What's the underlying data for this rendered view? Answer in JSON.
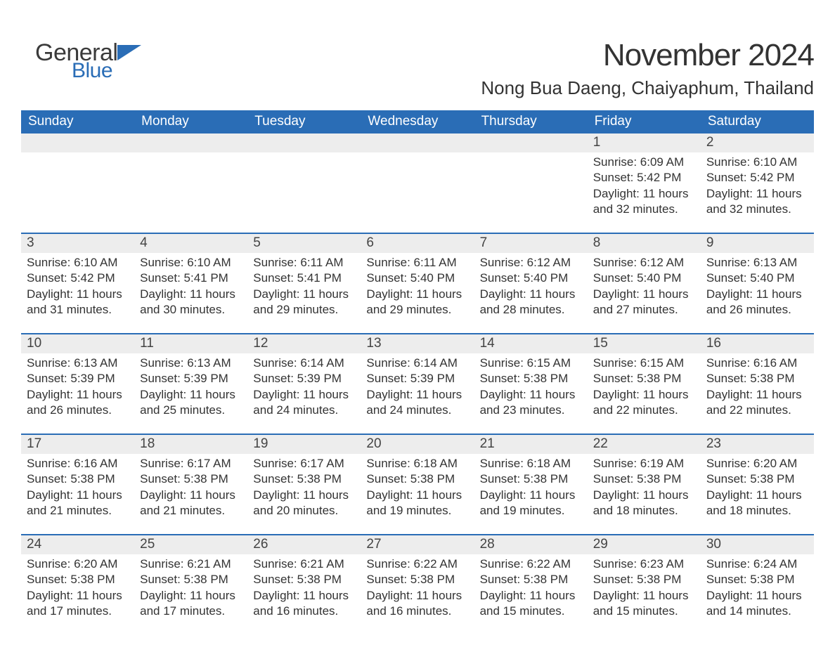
{
  "logo": {
    "general": "General",
    "blue": "Blue",
    "brand_color": "#2a6db6",
    "text_color": "#3a3a3a"
  },
  "title": "November 2024",
  "location": "Nong Bua Daeng, Chaiyaphum, Thailand",
  "colors": {
    "header_bg": "#2a6db6",
    "header_text": "#ffffff",
    "daynum_bg": "#ededed",
    "row_separator": "#2a6db6",
    "body_text": "#333333",
    "page_bg": "#ffffff"
  },
  "typography": {
    "title_fontsize": 44,
    "location_fontsize": 26,
    "header_fontsize": 19,
    "daynum_fontsize": 19,
    "body_fontsize": 17
  },
  "layout": {
    "columns": 7,
    "rows": 5,
    "start_day_index": 5
  },
  "weekday_headers": [
    "Sunday",
    "Monday",
    "Tuesday",
    "Wednesday",
    "Thursday",
    "Friday",
    "Saturday"
  ],
  "labels": {
    "sunrise": "Sunrise:",
    "sunset": "Sunset:",
    "daylight": "Daylight:"
  },
  "days": [
    {
      "n": 1,
      "sunrise": "6:09 AM",
      "sunset": "5:42 PM",
      "daylight": "11 hours and 32 minutes."
    },
    {
      "n": 2,
      "sunrise": "6:10 AM",
      "sunset": "5:42 PM",
      "daylight": "11 hours and 32 minutes."
    },
    {
      "n": 3,
      "sunrise": "6:10 AM",
      "sunset": "5:42 PM",
      "daylight": "11 hours and 31 minutes."
    },
    {
      "n": 4,
      "sunrise": "6:10 AM",
      "sunset": "5:41 PM",
      "daylight": "11 hours and 30 minutes."
    },
    {
      "n": 5,
      "sunrise": "6:11 AM",
      "sunset": "5:41 PM",
      "daylight": "11 hours and 29 minutes."
    },
    {
      "n": 6,
      "sunrise": "6:11 AM",
      "sunset": "5:40 PM",
      "daylight": "11 hours and 29 minutes."
    },
    {
      "n": 7,
      "sunrise": "6:12 AM",
      "sunset": "5:40 PM",
      "daylight": "11 hours and 28 minutes."
    },
    {
      "n": 8,
      "sunrise": "6:12 AM",
      "sunset": "5:40 PM",
      "daylight": "11 hours and 27 minutes."
    },
    {
      "n": 9,
      "sunrise": "6:13 AM",
      "sunset": "5:40 PM",
      "daylight": "11 hours and 26 minutes."
    },
    {
      "n": 10,
      "sunrise": "6:13 AM",
      "sunset": "5:39 PM",
      "daylight": "11 hours and 26 minutes."
    },
    {
      "n": 11,
      "sunrise": "6:13 AM",
      "sunset": "5:39 PM",
      "daylight": "11 hours and 25 minutes."
    },
    {
      "n": 12,
      "sunrise": "6:14 AM",
      "sunset": "5:39 PM",
      "daylight": "11 hours and 24 minutes."
    },
    {
      "n": 13,
      "sunrise": "6:14 AM",
      "sunset": "5:39 PM",
      "daylight": "11 hours and 24 minutes."
    },
    {
      "n": 14,
      "sunrise": "6:15 AM",
      "sunset": "5:38 PM",
      "daylight": "11 hours and 23 minutes."
    },
    {
      "n": 15,
      "sunrise": "6:15 AM",
      "sunset": "5:38 PM",
      "daylight": "11 hours and 22 minutes."
    },
    {
      "n": 16,
      "sunrise": "6:16 AM",
      "sunset": "5:38 PM",
      "daylight": "11 hours and 22 minutes."
    },
    {
      "n": 17,
      "sunrise": "6:16 AM",
      "sunset": "5:38 PM",
      "daylight": "11 hours and 21 minutes."
    },
    {
      "n": 18,
      "sunrise": "6:17 AM",
      "sunset": "5:38 PM",
      "daylight": "11 hours and 21 minutes."
    },
    {
      "n": 19,
      "sunrise": "6:17 AM",
      "sunset": "5:38 PM",
      "daylight": "11 hours and 20 minutes."
    },
    {
      "n": 20,
      "sunrise": "6:18 AM",
      "sunset": "5:38 PM",
      "daylight": "11 hours and 19 minutes."
    },
    {
      "n": 21,
      "sunrise": "6:18 AM",
      "sunset": "5:38 PM",
      "daylight": "11 hours and 19 minutes."
    },
    {
      "n": 22,
      "sunrise": "6:19 AM",
      "sunset": "5:38 PM",
      "daylight": "11 hours and 18 minutes."
    },
    {
      "n": 23,
      "sunrise": "6:20 AM",
      "sunset": "5:38 PM",
      "daylight": "11 hours and 18 minutes."
    },
    {
      "n": 24,
      "sunrise": "6:20 AM",
      "sunset": "5:38 PM",
      "daylight": "11 hours and 17 minutes."
    },
    {
      "n": 25,
      "sunrise": "6:21 AM",
      "sunset": "5:38 PM",
      "daylight": "11 hours and 17 minutes."
    },
    {
      "n": 26,
      "sunrise": "6:21 AM",
      "sunset": "5:38 PM",
      "daylight": "11 hours and 16 minutes."
    },
    {
      "n": 27,
      "sunrise": "6:22 AM",
      "sunset": "5:38 PM",
      "daylight": "11 hours and 16 minutes."
    },
    {
      "n": 28,
      "sunrise": "6:22 AM",
      "sunset": "5:38 PM",
      "daylight": "11 hours and 15 minutes."
    },
    {
      "n": 29,
      "sunrise": "6:23 AM",
      "sunset": "5:38 PM",
      "daylight": "11 hours and 15 minutes."
    },
    {
      "n": 30,
      "sunrise": "6:24 AM",
      "sunset": "5:38 PM",
      "daylight": "11 hours and 14 minutes."
    }
  ]
}
